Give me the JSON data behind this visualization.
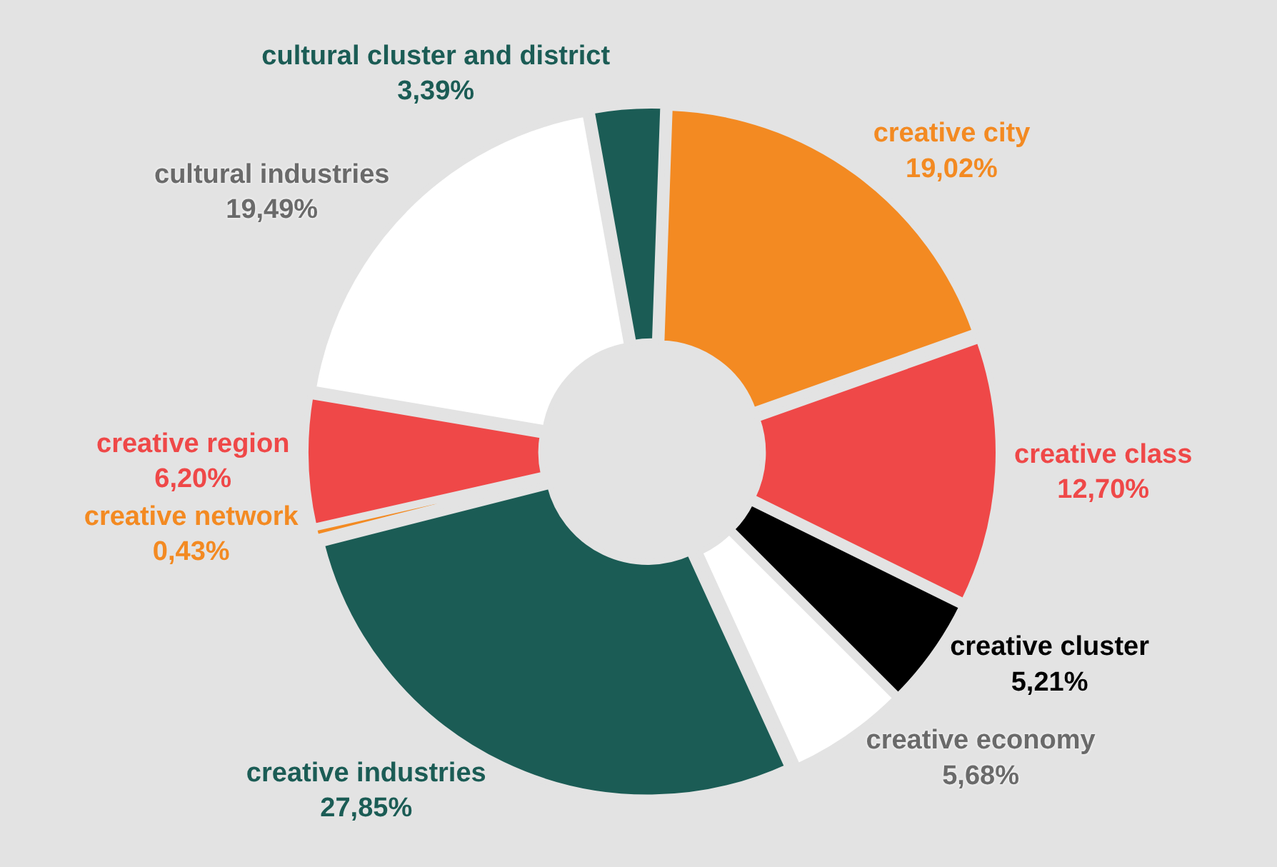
{
  "chart_data": {
    "type": "donut",
    "categories": [
      "creative city",
      "creative class",
      "creative cluster",
      "creative economy",
      "creative industries",
      "creative network",
      "creative region",
      "cultural industries",
      "cultural cluster and district"
    ],
    "values": [
      19.02,
      12.7,
      5.21,
      5.68,
      27.85,
      0.43,
      6.2,
      19.49,
      3.39
    ],
    "value_labels": [
      "19,02%",
      "12,70%",
      "5,21%",
      "5,68%",
      "27,85%",
      "0,43%",
      "6,20%",
      "19,49%",
      "3,39%"
    ],
    "colors": [
      "#f38a22",
      "#ef4848",
      "#000000",
      "#ffffff",
      "#1b5c55",
      "#f38a22",
      "#ef4848",
      "#ffffff",
      "#1b5c55"
    ],
    "legend": false
  }
}
